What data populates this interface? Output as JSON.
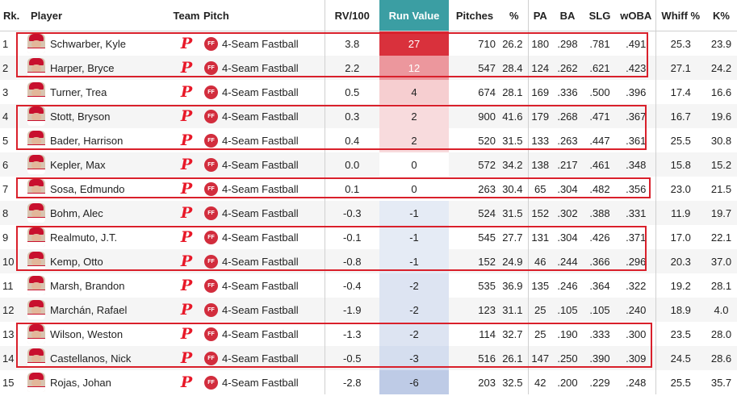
{
  "headers": {
    "rank": "Rk.",
    "player": "Player",
    "team": "Team",
    "pitch": "Pitch",
    "rv100": "RV/100",
    "run_value": "Run Value",
    "pitches": "Pitches",
    "pct": "%",
    "pa": "PA",
    "ba": "BA",
    "slg": "SLG",
    "woba": "wOBA",
    "whiff": "Whiff %",
    "k": "K%"
  },
  "team_logo_text": "P",
  "pitch_badge_text": "FF",
  "colors": {
    "rv_header": "#3b9ea3",
    "highlight": "#d9202b",
    "team": "#e81828",
    "pitch_badge": "#d22d3d"
  },
  "rows": [
    {
      "rank": "1",
      "player": "Schwarber, Kyle",
      "pitch": "4-Seam Fastball",
      "rv100": "3.8",
      "run_value": "27",
      "pitches": "710",
      "pct": "26.2",
      "pa": "180",
      "ba": ".298",
      "slg": ".781",
      "woba": ".491",
      "whiff": "25.3",
      "k": "23.9"
    },
    {
      "rank": "2",
      "player": "Harper, Bryce",
      "pitch": "4-Seam Fastball",
      "rv100": "2.2",
      "run_value": "12",
      "pitches": "547",
      "pct": "28.4",
      "pa": "124",
      "ba": ".262",
      "slg": ".621",
      "woba": ".423",
      "whiff": "27.1",
      "k": "24.2"
    },
    {
      "rank": "3",
      "player": "Turner, Trea",
      "pitch": "4-Seam Fastball",
      "rv100": "0.5",
      "run_value": "4",
      "pitches": "674",
      "pct": "28.1",
      "pa": "169",
      "ba": ".336",
      "slg": ".500",
      "woba": ".396",
      "whiff": "17.4",
      "k": "16.6"
    },
    {
      "rank": "4",
      "player": "Stott, Bryson",
      "pitch": "4-Seam Fastball",
      "rv100": "0.3",
      "run_value": "2",
      "pitches": "900",
      "pct": "41.6",
      "pa": "179",
      "ba": ".268",
      "slg": ".471",
      "woba": ".367",
      "whiff": "16.7",
      "k": "19.6"
    },
    {
      "rank": "5",
      "player": "Bader, Harrison",
      "pitch": "4-Seam Fastball",
      "rv100": "0.4",
      "run_value": "2",
      "pitches": "520",
      "pct": "31.5",
      "pa": "133",
      "ba": ".263",
      "slg": ".447",
      "woba": ".361",
      "whiff": "25.5",
      "k": "30.8"
    },
    {
      "rank": "6",
      "player": "Kepler, Max",
      "pitch": "4-Seam Fastball",
      "rv100": "0.0",
      "run_value": "0",
      "pitches": "572",
      "pct": "34.2",
      "pa": "138",
      "ba": ".217",
      "slg": ".461",
      "woba": ".348",
      "whiff": "15.8",
      "k": "15.2"
    },
    {
      "rank": "7",
      "player": "Sosa, Edmundo",
      "pitch": "4-Seam Fastball",
      "rv100": "0.1",
      "run_value": "0",
      "pitches": "263",
      "pct": "30.4",
      "pa": "65",
      "ba": ".304",
      "slg": ".482",
      "woba": ".356",
      "whiff": "23.0",
      "k": "21.5"
    },
    {
      "rank": "8",
      "player": "Bohm, Alec",
      "pitch": "4-Seam Fastball",
      "rv100": "-0.3",
      "run_value": "-1",
      "pitches": "524",
      "pct": "31.5",
      "pa": "152",
      "ba": ".302",
      "slg": ".388",
      "woba": ".331",
      "whiff": "11.9",
      "k": "19.7"
    },
    {
      "rank": "9",
      "player": "Realmuto, J.T.",
      "pitch": "4-Seam Fastball",
      "rv100": "-0.1",
      "run_value": "-1",
      "pitches": "545",
      "pct": "27.7",
      "pa": "131",
      "ba": ".304",
      "slg": ".426",
      "woba": ".371",
      "whiff": "17.0",
      "k": "22.1"
    },
    {
      "rank": "10",
      "player": "Kemp, Otto",
      "pitch": "4-Seam Fastball",
      "rv100": "-0.8",
      "run_value": "-1",
      "pitches": "152",
      "pct": "24.9",
      "pa": "46",
      "ba": ".244",
      "slg": ".366",
      "woba": ".296",
      "whiff": "20.3",
      "k": "37.0"
    },
    {
      "rank": "11",
      "player": "Marsh, Brandon",
      "pitch": "4-Seam Fastball",
      "rv100": "-0.4",
      "run_value": "-2",
      "pitches": "535",
      "pct": "36.9",
      "pa": "135",
      "ba": ".246",
      "slg": ".364",
      "woba": ".322",
      "whiff": "19.2",
      "k": "28.1"
    },
    {
      "rank": "12",
      "player": "Marchán, Rafael",
      "pitch": "4-Seam Fastball",
      "rv100": "-1.9",
      "run_value": "-2",
      "pitches": "123",
      "pct": "31.1",
      "pa": "25",
      "ba": ".105",
      "slg": ".105",
      "woba": ".240",
      "whiff": "18.9",
      "k": "4.0"
    },
    {
      "rank": "13",
      "player": "Wilson, Weston",
      "pitch": "4-Seam Fastball",
      "rv100": "-1.3",
      "run_value": "-2",
      "pitches": "114",
      "pct": "32.7",
      "pa": "25",
      "ba": ".190",
      "slg": ".333",
      "woba": ".300",
      "whiff": "23.5",
      "k": "28.0"
    },
    {
      "rank": "14",
      "player": "Castellanos, Nick",
      "pitch": "4-Seam Fastball",
      "rv100": "-0.5",
      "run_value": "-3",
      "pitches": "516",
      "pct": "26.1",
      "pa": "147",
      "ba": ".250",
      "slg": ".390",
      "woba": ".309",
      "whiff": "24.5",
      "k": "28.6"
    },
    {
      "rank": "15",
      "player": "Rojas, Johan",
      "pitch": "4-Seam Fastball",
      "rv100": "-2.8",
      "run_value": "-6",
      "pitches": "203",
      "pct": "32.5",
      "pa": "42",
      "ba": ".200",
      "slg": ".229",
      "woba": ".248",
      "whiff": "25.5",
      "k": "35.7"
    }
  ]
}
